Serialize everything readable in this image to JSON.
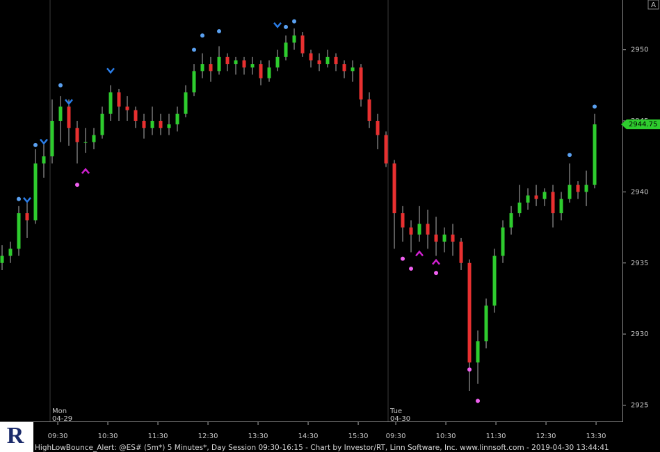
{
  "chart_data": {
    "type": "candlestick",
    "footer": "HighLowBounce_Alert: @ES# (5m*) 5 Minutes*, Day Session 09:30-16:15 - Chart by Investor/RT, Linn Software, Inc. www.linnsoft.com - 2019-04-30 13:44:41",
    "corner_label": "A",
    "ylim": [
      2923.9,
      2953.5
    ],
    "yticks": [
      2925,
      2930,
      2935,
      2940,
      2945,
      2950
    ],
    "xlim": [
      -0.25,
      74.33
    ],
    "xticks": [
      {
        "value": 6.67,
        "label": "09:30"
      },
      {
        "value": 12.67,
        "label": "10:30"
      },
      {
        "value": 18.67,
        "label": "11:30"
      },
      {
        "value": 24.67,
        "label": "12:30"
      },
      {
        "value": 30.67,
        "label": "13:30"
      },
      {
        "value": 36.67,
        "label": "14:30"
      },
      {
        "value": 42.67,
        "label": "15:30"
      },
      {
        "value": 47.17,
        "label": "09:30"
      },
      {
        "value": 53.17,
        "label": "10:30"
      },
      {
        "value": 59.17,
        "label": "11:30"
      },
      {
        "value": 65.17,
        "label": "12:30"
      },
      {
        "value": 71.17,
        "label": "13:30"
      }
    ],
    "sessions": [
      {
        "value": 5.75,
        "day": "Mon",
        "date": "04-29"
      },
      {
        "value": 46.25,
        "day": "Tue",
        "date": "04-30"
      }
    ],
    "up_color": "#2ecc2e",
    "down_color": "#e83030",
    "wick_color": "#b4b4b4",
    "last_price": {
      "value": 2944.75,
      "label": "2944.75"
    },
    "open": [
      2935,
      2935.5,
      2936,
      2938.5,
      2938,
      2942,
      2942.5,
      2945,
      2946,
      2944.5,
      2943.5,
      2943.5,
      2944,
      2945.5,
      2947,
      2946,
      2945.75,
      2945,
      2944.5,
      2945,
      2944.5,
      2944.75,
      2945.5,
      2947,
      2948.5,
      2949,
      2948.5,
      2949.5,
      2949,
      2949.25,
      2948.75,
      2949,
      2948,
      2948.75,
      2949.5,
      2950.5,
      2951,
      2949.75,
      2949.25,
      2949,
      2949.5,
      2949,
      2948.5,
      2948.75,
      2946.5,
      2945,
      2944,
      2942,
      2938.5,
      2937.5,
      2937,
      2937.75,
      2937,
      2936.5,
      2937,
      2936.5,
      2935,
      2928,
      2929.5,
      2932,
      2935.5,
      2937.5,
      2938.5,
      2939.25,
      2939.75,
      2939.5,
      2940,
      2938.5,
      2939.5,
      2940.5,
      2940,
      2940.5
    ],
    "high": [
      2936.25,
      2936.5,
      2939,
      2939.25,
      2943,
      2943.5,
      2946.5,
      2946.75,
      2946.5,
      2945,
      2944.5,
      2944.5,
      2946,
      2947.5,
      2947.25,
      2946.75,
      2946,
      2945.5,
      2946,
      2945.5,
      2945.5,
      2946,
      2947.5,
      2949,
      2949.75,
      2949.5,
      2950.25,
      2949.75,
      2949.5,
      2949.5,
      2949.5,
      2949.25,
      2949.25,
      2950,
      2951,
      2951.5,
      2951.25,
      2950,
      2949.75,
      2950,
      2949.75,
      2949.25,
      2949.25,
      2949,
      2947,
      2945.5,
      2944.25,
      2942.25,
      2939,
      2938,
      2939,
      2938.75,
      2938.25,
      2937.5,
      2937.75,
      2936.75,
      2935.25,
      2930.25,
      2932.5,
      2936,
      2938,
      2939,
      2940.5,
      2940.25,
      2940.5,
      2940.25,
      2940.5,
      2940,
      2942,
      2940.75,
      2941.5,
      2945.5
    ],
    "low": [
      2934.5,
      2935,
      2935.5,
      2936.75,
      2937.75,
      2941,
      2942,
      2943.5,
      2943.25,
      2942,
      2942.75,
      2943,
      2943.75,
      2945,
      2945,
      2945,
      2944.5,
      2943.75,
      2944,
      2944,
      2944,
      2944.25,
      2945.25,
      2946.75,
      2948,
      2947.75,
      2948.25,
      2948.5,
      2948.25,
      2948.25,
      2948.25,
      2947.5,
      2947.75,
      2948.5,
      2949.25,
      2950,
      2949.5,
      2948.75,
      2948.5,
      2948.75,
      2948.5,
      2948,
      2947.75,
      2946,
      2944.5,
      2943,
      2941.75,
      2936,
      2936.5,
      2935.75,
      2936.5,
      2936,
      2935.5,
      2935.75,
      2935.5,
      2934.5,
      2926,
      2926.5,
      2929,
      2931.5,
      2935,
      2937,
      2938.25,
      2938.75,
      2939,
      2939,
      2937.5,
      2938,
      2939.25,
      2939.5,
      2939,
      2940.25
    ],
    "close": [
      2935.5,
      2936,
      2938.5,
      2938,
      2942,
      2942.5,
      2945,
      2946,
      2944.5,
      2943.5,
      2943.5,
      2944,
      2945.5,
      2947,
      2946,
      2945.75,
      2945,
      2944.5,
      2945,
      2944.5,
      2944.75,
      2945.5,
      2947,
      2948.5,
      2949,
      2948.5,
      2949.5,
      2949,
      2949.25,
      2948.75,
      2949,
      2948,
      2948.75,
      2949.5,
      2950.5,
      2951,
      2949.75,
      2949.25,
      2949,
      2949.5,
      2949,
      2948.5,
      2948.75,
      2946.5,
      2945,
      2944,
      2942,
      2938.5,
      2937.5,
      2937,
      2937.75,
      2937,
      2936.5,
      2937,
      2936.5,
      2935,
      2928,
      2929.5,
      2932,
      2935.5,
      2937.5,
      2938.5,
      2939.25,
      2939.75,
      2939.5,
      2940,
      2938.5,
      2939.5,
      2940.5,
      2940,
      2940.5,
      2944.75
    ],
    "markers": [
      {
        "shape": "dot",
        "color": "#5aa0f0",
        "x": [
          2,
          4,
          7,
          23,
          24,
          26,
          34,
          35,
          68,
          71
        ],
        "values": [
          2939.5,
          2943.3,
          2947.5,
          2950,
          2951,
          2951.3,
          2951.6,
          2952,
          2942.6,
          2946
        ]
      },
      {
        "shape": "dot",
        "color": "#f060f0",
        "x": [
          9,
          48,
          49,
          52,
          56,
          57
        ],
        "values": [
          2940.5,
          2935.3,
          2934.6,
          2934.3,
          2927.5,
          2925.3
        ]
      },
      {
        "shape": "down-chevron",
        "color": "#2a7de8",
        "x": [
          3,
          5,
          8,
          13,
          33
        ],
        "values": [
          2939.4,
          2943.5,
          2946.3,
          2948.5,
          2951.7
        ]
      },
      {
        "shape": "up-chevron",
        "color": "#d020d0",
        "x": [
          10,
          50,
          52
        ],
        "values": [
          2941.5,
          2935.7,
          2935.1
        ]
      }
    ]
  }
}
